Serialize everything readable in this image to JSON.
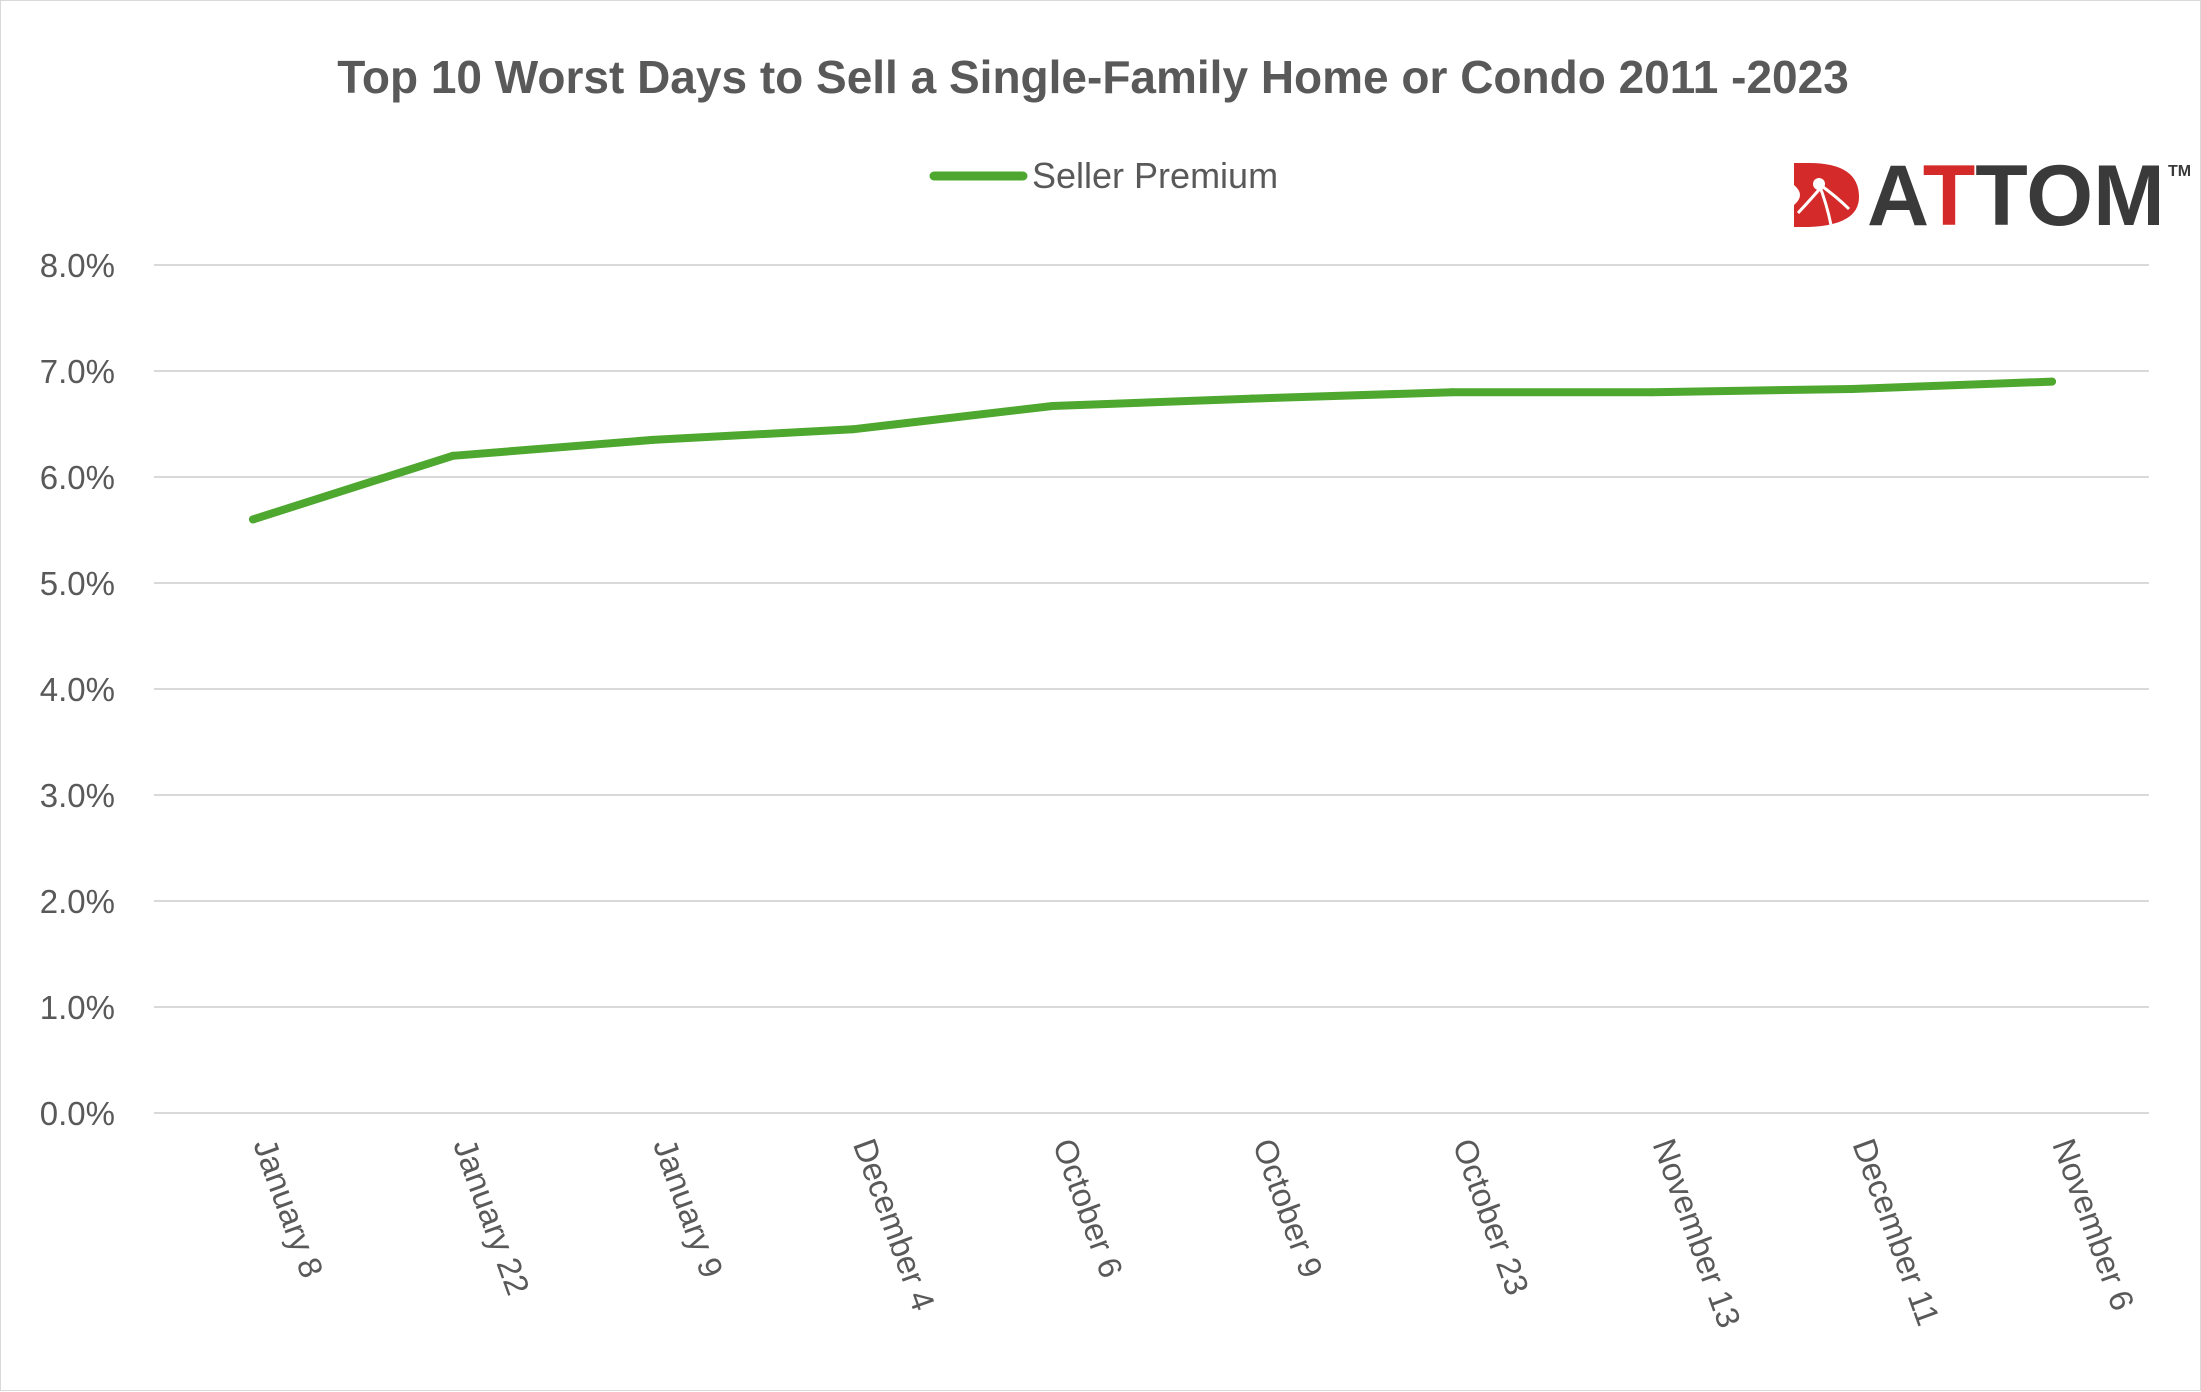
{
  "chart_data": {
    "type": "line",
    "title": "Top 10 Worst Days to Sell a Single-Family Home or Condo 2011 -2023",
    "categories": [
      "January 8",
      "January 22",
      "January 9",
      "December 4",
      "October 6",
      "October 9",
      "October 23",
      "November 13",
      "December 11",
      "November 6"
    ],
    "series": [
      {
        "name": "Seller Premium",
        "values": [
          5.6,
          6.2,
          6.35,
          6.45,
          6.67,
          6.74,
          6.8,
          6.8,
          6.83,
          6.9
        ],
        "color": "#4ea72e"
      }
    ],
    "ylim": [
      0,
      8
    ],
    "yticks": [
      0,
      1,
      2,
      3,
      4,
      5,
      6,
      7,
      8
    ],
    "ytick_format": "percent_1dp",
    "grid": true,
    "legend": "top-center",
    "xlabel": "",
    "ylabel": ""
  },
  "logo": {
    "brand": "ATTOM",
    "mark": "TM",
    "icon": "attom-house-icon",
    "accent_color": "#d42a2a",
    "text_color": "#3a3a3a"
  },
  "colors": {
    "grid": "#d9d9d9",
    "text": "#595959",
    "line": "#4ea72e"
  }
}
